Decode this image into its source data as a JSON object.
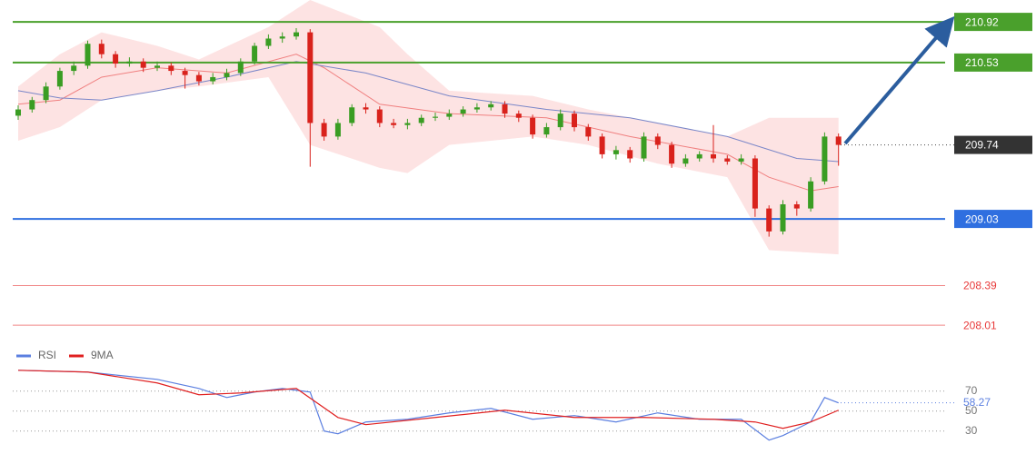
{
  "chart_data": {
    "type": "candlestick",
    "up_color": "#3a9d23",
    "down_color": "#d9221c",
    "ylim": [
      207.82,
      211.13
    ],
    "candles": {
      "open": [
        210.02,
        210.08,
        210.17,
        210.3,
        210.45,
        210.5,
        210.71,
        210.61,
        210.52,
        210.54,
        210.48,
        210.5,
        210.45,
        210.41,
        210.35,
        210.39,
        210.43,
        210.54,
        210.69,
        210.76,
        210.78,
        210.82,
        209.95,
        209.82,
        209.95,
        210.1,
        210.08,
        209.95,
        209.93,
        209.95,
        210.0,
        210.01,
        210.04,
        210.08,
        210.1,
        210.13,
        210.04,
        210.0,
        209.84,
        209.91,
        210.04,
        209.91,
        209.82,
        209.65,
        209.69,
        209.61,
        209.82,
        209.74,
        209.56,
        209.61,
        209.65,
        209.61,
        209.58,
        209.61,
        209.13,
        208.91,
        209.17,
        209.13,
        209.39,
        209.82
      ],
      "high": [
        210.12,
        210.2,
        210.34,
        210.48,
        210.54,
        210.74,
        210.75,
        210.64,
        210.58,
        210.57,
        210.54,
        210.53,
        210.48,
        210.44,
        210.43,
        210.47,
        210.57,
        210.72,
        210.8,
        210.82,
        210.86,
        210.85,
        209.99,
        209.99,
        210.13,
        210.14,
        210.11,
        209.99,
        209.99,
        210.03,
        210.05,
        210.08,
        210.11,
        210.14,
        210.16,
        210.16,
        210.07,
        210.03,
        209.95,
        210.08,
        210.07,
        209.94,
        209.85,
        209.73,
        209.72,
        209.86,
        209.85,
        209.77,
        209.65,
        209.68,
        209.93,
        209.64,
        209.65,
        209.64,
        209.16,
        209.21,
        209.2,
        209.43,
        209.86,
        209.85
      ],
      "low": [
        209.98,
        210.05,
        210.14,
        210.27,
        210.41,
        210.47,
        210.57,
        210.48,
        210.49,
        210.44,
        210.45,
        210.41,
        210.28,
        210.31,
        210.32,
        210.36,
        210.4,
        210.51,
        210.66,
        210.72,
        210.75,
        209.53,
        209.78,
        209.79,
        209.92,
        210.04,
        209.91,
        209.9,
        209.89,
        209.92,
        209.97,
        209.98,
        210.01,
        210.05,
        210.07,
        210.0,
        209.96,
        209.8,
        209.81,
        209.88,
        209.87,
        209.78,
        209.61,
        209.6,
        209.57,
        209.58,
        209.7,
        209.52,
        209.53,
        209.58,
        209.57,
        209.55,
        209.55,
        209.05,
        208.86,
        208.88,
        209.06,
        209.1,
        209.36,
        209.54
      ],
      "close": [
        210.08,
        210.17,
        210.3,
        210.45,
        210.5,
        210.71,
        210.61,
        210.52,
        210.54,
        210.48,
        210.5,
        210.45,
        210.41,
        210.35,
        210.39,
        210.43,
        210.54,
        210.69,
        210.76,
        210.78,
        210.82,
        209.95,
        209.82,
        209.95,
        210.1,
        210.08,
        209.95,
        209.93,
        209.95,
        210.0,
        210.01,
        210.04,
        210.08,
        210.1,
        210.13,
        210.04,
        210.0,
        209.84,
        209.91,
        210.04,
        209.91,
        209.82,
        209.65,
        209.69,
        209.61,
        209.82,
        209.74,
        209.56,
        209.61,
        209.65,
        209.61,
        209.58,
        209.61,
        209.13,
        208.91,
        209.17,
        209.13,
        209.39,
        209.82,
        209.74
      ]
    },
    "band": {
      "color": "#fde3e3",
      "x": [
        0,
        3,
        6,
        10,
        13,
        18,
        21,
        26,
        28,
        31,
        37,
        41,
        46,
        51,
        54,
        59
      ],
      "upper": [
        210.3,
        210.61,
        210.82,
        210.69,
        210.56,
        210.87,
        211.13,
        210.87,
        210.61,
        210.26,
        210.21,
        210.08,
        209.95,
        209.82,
        210.0,
        210.0
      ],
      "lower": [
        209.78,
        209.91,
        210.17,
        210.26,
        210.3,
        210.39,
        209.74,
        209.52,
        209.47,
        209.74,
        209.82,
        209.74,
        209.56,
        209.43,
        208.73,
        208.69
      ]
    },
    "lines": [
      {
        "color": "#f08080",
        "x": [
          0,
          3,
          6,
          10,
          15,
          20,
          22,
          26,
          31,
          38,
          44,
          51,
          54,
          57,
          59
        ],
        "values": [
          210.13,
          210.17,
          210.39,
          210.48,
          210.43,
          210.61,
          210.48,
          210.13,
          210.04,
          210.0,
          209.82,
          209.65,
          209.43,
          209.3,
          209.34
        ]
      },
      {
        "color": "#7a86c8",
        "x": [
          0,
          3,
          6,
          10,
          15,
          20,
          25,
          31,
          38,
          44,
          51,
          56,
          59
        ],
        "values": [
          210.26,
          210.19,
          210.17,
          210.26,
          210.39,
          210.54,
          210.43,
          210.21,
          210.08,
          210.0,
          209.82,
          209.61,
          209.58
        ]
      }
    ],
    "levels": [
      {
        "value": 210.92,
        "color": "#4aa02c",
        "style": "tag"
      },
      {
        "value": 210.53,
        "color": "#4aa02c",
        "style": "tag"
      },
      {
        "value": 209.74,
        "color": "#333333",
        "style": "current"
      },
      {
        "value": 209.03,
        "color": "#2f6fe0",
        "style": "tag"
      },
      {
        "value": 208.39,
        "color": "#e83a3a",
        "style": "text"
      },
      {
        "value": 208.01,
        "color": "#e83a3a",
        "style": "text"
      }
    ],
    "rsi": {
      "ylim": [
        7,
        98
      ],
      "yticks": [
        70,
        50,
        30
      ],
      "series": [
        {
          "name": "RSI",
          "color": "#5b7fe0",
          "x": [
            0,
            5,
            10,
            13,
            15,
            17,
            19,
            20,
            21,
            22,
            23,
            25,
            28,
            31,
            34,
            37,
            40,
            43,
            46,
            49,
            52,
            54,
            55,
            57,
            58,
            59
          ],
          "values": [
            90.9,
            89.1,
            81.8,
            72.7,
            63.6,
            69.1,
            72.7,
            70.9,
            69.1,
            30,
            27.3,
            39.1,
            41.8,
            48.2,
            52.7,
            41.8,
            45.5,
            39.1,
            48.2,
            41.8,
            41.8,
            20.9,
            25.5,
            39.1,
            63.6,
            58.27
          ]
        },
        {
          "name": "9MA",
          "color": "#e02020",
          "x": [
            0,
            5,
            10,
            13,
            16,
            20,
            23,
            25,
            30,
            35,
            40,
            45,
            50,
            53,
            55,
            57,
            59
          ],
          "values": [
            90.9,
            89.1,
            78.2,
            66.4,
            68.2,
            72.7,
            43.6,
            36.4,
            43.6,
            50.9,
            43.6,
            43.6,
            41.8,
            39.1,
            32.7,
            39.1,
            50.9
          ]
        }
      ]
    }
  }
}
